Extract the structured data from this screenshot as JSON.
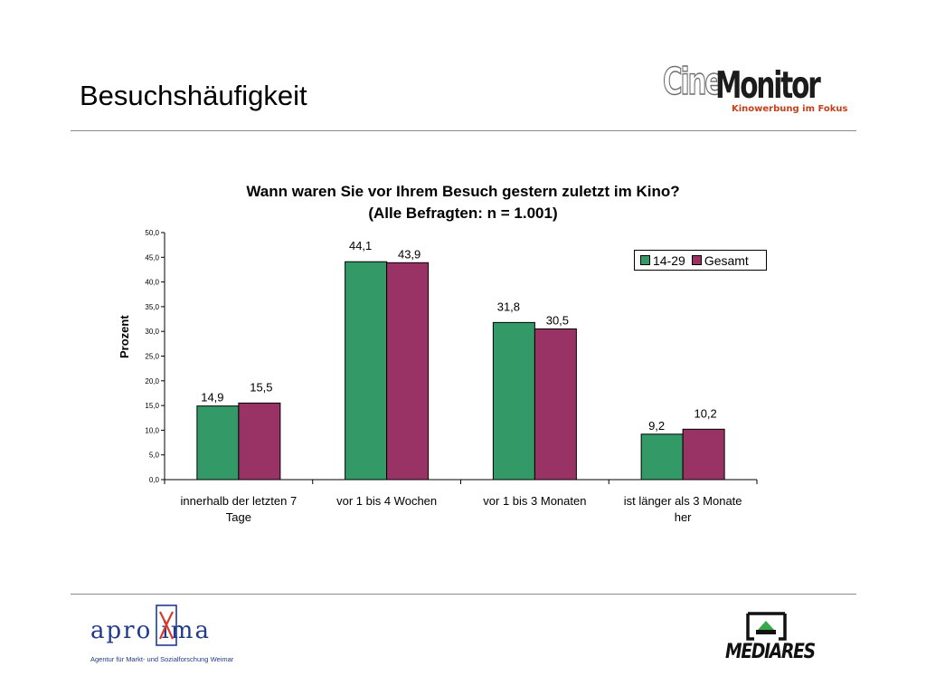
{
  "slide": {
    "title": "Besuchshäufigkeit"
  },
  "logos": {
    "cinemonitor": {
      "part1": "Cine",
      "part2": "Monitor",
      "tagline": "Kinowerbung im Fokus",
      "tagline_color": "#c8401a"
    },
    "aproxima": {
      "word": "apro ima",
      "subtitle": "Agentur für Markt- und Sozialforschung Weimar",
      "color": "#1f3b8a",
      "accent": "#d83a2a"
    },
    "mediares": {
      "word": "MEDIARES"
    }
  },
  "chart_data": {
    "type": "bar",
    "title": "Wann waren Sie vor Ihrem Besuch gestern zuletzt im Kino?",
    "subtitle": "(Alle Befragten:  n = 1.001)",
    "xlabel": "",
    "ylabel": "Prozent",
    "ylim": [
      0,
      50
    ],
    "y_ticks": [
      "0,0",
      "5,0",
      "10,0",
      "15,0",
      "20,0",
      "25,0",
      "30,0",
      "35,0",
      "40,0",
      "45,0",
      "50,0"
    ],
    "categories": [
      [
        "innerhalb der letzten 7",
        "Tage"
      ],
      [
        "vor 1 bis 4 Wochen"
      ],
      [
        "vor 1 bis 3 Monaten"
      ],
      [
        "ist länger als 3 Monate",
        "her"
      ]
    ],
    "series": [
      {
        "name": "14-29",
        "color": "#339966",
        "values": [
          14.9,
          44.1,
          31.8,
          9.2
        ],
        "labels": [
          "14,9",
          "44,1",
          "31,8",
          "9,2"
        ]
      },
      {
        "name": "Gesamt",
        "color": "#993366",
        "values": [
          15.5,
          43.9,
          30.5,
          10.2
        ],
        "labels": [
          "15,5",
          "43,9",
          "30,5",
          "10,2"
        ]
      }
    ],
    "legend_position": "top-right",
    "grid": false
  }
}
